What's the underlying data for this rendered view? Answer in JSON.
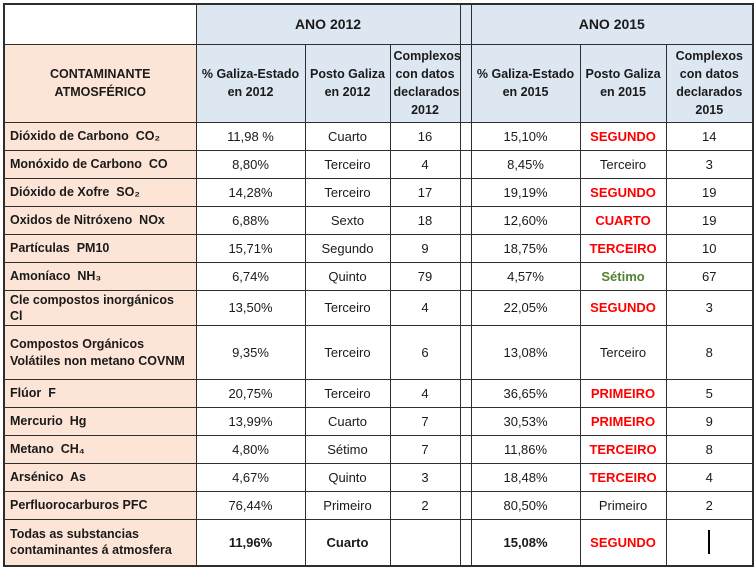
{
  "colors": {
    "header_blue": "#dce7f2",
    "row_peach": "#fce4d6",
    "rank_red": "#ff0000",
    "rank_green": "#538135",
    "border": "#2e2e2e"
  },
  "table": {
    "contaminant_header": "CONTAMINANTE ATMOSFÉRICO",
    "year2012_header": "ANO 2012",
    "year2015_header": "ANO 2015",
    "columns_2012": [
      "% Galiza-Estado en 2012",
      "Posto Galiza en 2012",
      "Complexos con datos declarados 2012"
    ],
    "columns_2015": [
      "% Galiza-Estado en 2015",
      "Posto Galiza en 2015",
      "Complexos con datos declarados 2015"
    ],
    "rows": [
      {
        "contaminant": "Dióxido de Carbono  CO₂",
        "pct2012": "11,98 %",
        "posto2012": "Cuarto",
        "complexos2012": "16",
        "pct2015": "15,10%",
        "posto2015": "SEGUNDO",
        "posto2015_style": "rank-red",
        "complexos2015": "14"
      },
      {
        "contaminant": "Monóxido de Carbono  CO",
        "pct2012": "8,80%",
        "posto2012": "Terceiro",
        "complexos2012": "4",
        "pct2015": "8,45%",
        "posto2015": "Terceiro",
        "posto2015_style": "",
        "complexos2015": "3"
      },
      {
        "contaminant": "Dióxido de Xofre  SO₂",
        "pct2012": "14,28%",
        "posto2012": "Terceiro",
        "complexos2012": "17",
        "pct2015": "19,19%",
        "posto2015": "SEGUNDO",
        "posto2015_style": "rank-red",
        "complexos2015": "19"
      },
      {
        "contaminant": "Oxidos de Nitróxeno  NOx",
        "pct2012": "6,88%",
        "posto2012": "Sexto",
        "complexos2012": "18",
        "pct2015": "12,60%",
        "posto2015": "CUARTO",
        "posto2015_style": "rank-red",
        "complexos2015": "19"
      },
      {
        "contaminant": "Partículas  PM10",
        "pct2012": "15,71%",
        "posto2012": "Segundo",
        "complexos2012": "9",
        "pct2015": "18,75%",
        "posto2015": "TERCEIRO",
        "posto2015_style": "rank-red",
        "complexos2015": "10"
      },
      {
        "contaminant": "Amoníaco  NH₃",
        "pct2012": "6,74%",
        "posto2012": "Quinto",
        "complexos2012": "79",
        "pct2015": "4,57%",
        "posto2015": "Sétimo",
        "posto2015_style": "rank-green",
        "complexos2015": "67"
      },
      {
        "contaminant": "Cle compostos inorgánicos  Cl",
        "pct2012": "13,50%",
        "posto2012": "Terceiro",
        "complexos2012": "4",
        "pct2015": "22,05%",
        "posto2015": "SEGUNDO",
        "posto2015_style": "rank-red",
        "complexos2015": "3"
      },
      {
        "contaminant": "Compostos Orgánicos Volátiles non metano COVNM",
        "pct2012": "9,35%",
        "posto2012": "Terceiro",
        "complexos2012": "6",
        "pct2015": "13,08%",
        "posto2015": "Terceiro",
        "posto2015_style": "",
        "complexos2015": "8"
      },
      {
        "contaminant": "Flúor  F",
        "pct2012": "20,75%",
        "posto2012": "Terceiro",
        "complexos2012": "4",
        "pct2015": "36,65%",
        "posto2015": "PRIMEIRO",
        "posto2015_style": "rank-red",
        "complexos2015": "5"
      },
      {
        "contaminant": "Mercurio  Hg",
        "pct2012": "13,99%",
        "posto2012": "Cuarto",
        "complexos2012": "7",
        "pct2015": "30,53%",
        "posto2015": "PRIMEIRO",
        "posto2015_style": "rank-red",
        "complexos2015": "9"
      },
      {
        "contaminant": "Metano  CH₄",
        "pct2012": "4,80%",
        "posto2012": "Sétimo",
        "complexos2012": "7",
        "pct2015": "11,86%",
        "posto2015": "TERCEIRO",
        "posto2015_style": "rank-red",
        "complexos2015": "8"
      },
      {
        "contaminant": "Arsénico  As",
        "pct2012": "4,67%",
        "posto2012": "Quinto",
        "complexos2012": "3",
        "pct2015": "18,48%",
        "posto2015": "TERCEIRO",
        "posto2015_style": "rank-red",
        "complexos2015": "4"
      },
      {
        "contaminant": "Perfluorocarburos PFC",
        "pct2012": "76,44%",
        "posto2012": "Primeiro",
        "complexos2012": "2",
        "pct2015": "80,50%",
        "posto2015": "Primeiro",
        "posto2015_style": "",
        "complexos2015": "2"
      },
      {
        "contaminant": "Todas as substancias contaminantes á atmosfera",
        "pct2012": "11,96%",
        "posto2012": "Cuarto",
        "complexos2012": "",
        "pct2015": "15,08%",
        "posto2015": "SEGUNDO",
        "posto2015_style": "rank-red",
        "complexos2015": "",
        "emphasis": true,
        "caret": true
      }
    ]
  }
}
